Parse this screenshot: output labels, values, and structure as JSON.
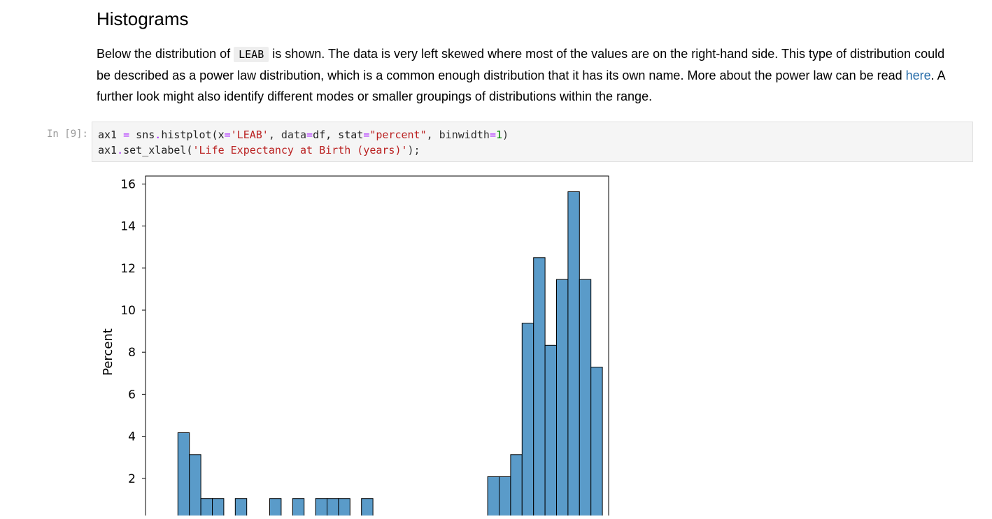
{
  "section": {
    "heading": "Histograms"
  },
  "paragraph": {
    "part1": "Below the distribution of ",
    "code_term": "LEAB",
    "part2": " is shown. The data is very left skewed where most of the values are on the right-hand side. This type of distribution could be described as a power law distribution, which is a common enough distribution that it has its own name. More about the power law can be read ",
    "link_text": "here",
    "part3": ". A further look might also identify different modes or smaller groupings of distributions within the range."
  },
  "cell": {
    "prompt": "In [9]:",
    "code_lines": [
      [
        {
          "t": "ax1",
          "c": "var"
        },
        {
          "t": " ",
          "c": "punc"
        },
        {
          "t": "=",
          "c": "op"
        },
        {
          "t": " sns",
          "c": "var"
        },
        {
          "t": ".",
          "c": "op"
        },
        {
          "t": "histplot(x",
          "c": "var"
        },
        {
          "t": "=",
          "c": "op"
        },
        {
          "t": "'LEAB'",
          "c": "str"
        },
        {
          "t": ", data",
          "c": "punc"
        },
        {
          "t": "=",
          "c": "op"
        },
        {
          "t": "df, stat",
          "c": "var"
        },
        {
          "t": "=",
          "c": "op"
        },
        {
          "t": "\"percent\"",
          "c": "str"
        },
        {
          "t": ", binwidth",
          "c": "punc"
        },
        {
          "t": "=",
          "c": "op"
        },
        {
          "t": "1",
          "c": "num"
        },
        {
          "t": ")",
          "c": "punc"
        }
      ],
      [
        {
          "t": "ax1",
          "c": "var"
        },
        {
          "t": ".",
          "c": "op"
        },
        {
          "t": "set_xlabel(",
          "c": "var"
        },
        {
          "t": "'Life Expectancy at Birth (years)'",
          "c": "str"
        },
        {
          "t": ");",
          "c": "punc"
        }
      ]
    ]
  },
  "chart_data": {
    "type": "bar",
    "ylabel": "Percent",
    "yticks": [
      2,
      4,
      6,
      8,
      10,
      12,
      14,
      16
    ],
    "ylim": [
      0,
      16.4
    ],
    "bar_color": "#5a9bc9",
    "bin_count": 38,
    "bars": [
      {
        "bin": 2,
        "value": 4.17
      },
      {
        "bin": 3,
        "value": 3.13
      },
      {
        "bin": 4,
        "value": 1.04
      },
      {
        "bin": 5,
        "value": 1.04
      },
      {
        "bin": 7,
        "value": 1.04
      },
      {
        "bin": 10,
        "value": 1.04
      },
      {
        "bin": 12,
        "value": 1.04
      },
      {
        "bin": 14,
        "value": 1.04
      },
      {
        "bin": 15,
        "value": 1.04
      },
      {
        "bin": 16,
        "value": 1.04
      },
      {
        "bin": 18,
        "value": 1.04
      },
      {
        "bin": 29,
        "value": 2.08
      },
      {
        "bin": 30,
        "value": 2.08
      },
      {
        "bin": 31,
        "value": 3.13
      },
      {
        "bin": 32,
        "value": 9.38
      },
      {
        "bin": 33,
        "value": 12.5
      },
      {
        "bin": 34,
        "value": 8.33
      },
      {
        "bin": 35,
        "value": 11.46
      },
      {
        "bin": 36,
        "value": 15.63
      },
      {
        "bin": 37,
        "value": 11.46
      },
      {
        "bin": 38,
        "value": 7.29
      }
    ]
  }
}
